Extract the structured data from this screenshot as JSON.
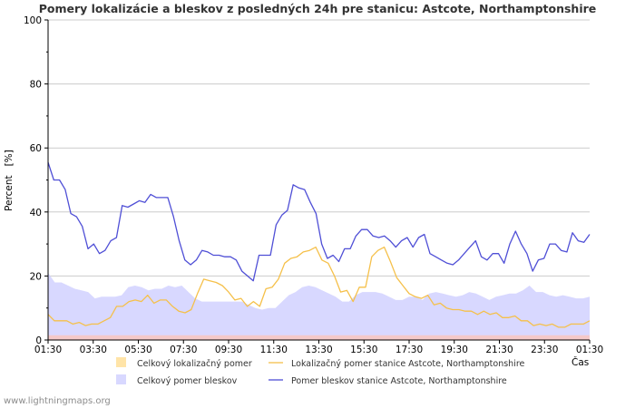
{
  "chart_data": {
    "type": "line",
    "title": "Pomery lokalizácie a bleskov z posledných 24h pre stanicu: Astcote, Northamptonshire",
    "xlabel": "Čas",
    "ylabel": "Percent   [%]",
    "ylim": [
      0,
      100
    ],
    "y_ticks": [
      "0",
      "20",
      "40",
      "60",
      "80",
      "100"
    ],
    "x_ticks": [
      "01:30",
      "03:30",
      "05:30",
      "07:30",
      "09:30",
      "11:30",
      "13:30",
      "15:30",
      "17:30",
      "19:30",
      "21:30",
      "23:30",
      "01:30"
    ],
    "colors": {
      "total_loc": "#ffe4a8",
      "total_light": "#d8d8ff",
      "station_loc": "#f5c04a",
      "station_light": "#4f4fd6",
      "grid": "#cccccc",
      "base": "#f4c9c9"
    },
    "legend": [
      {
        "key": "total_loc",
        "label": "Celkový lokalizačný pomer",
        "style": "area"
      },
      {
        "key": "station_loc",
        "label": "Lokalizačný pomer stanice Astcote, Northamptonshire",
        "style": "line"
      },
      {
        "key": "total_light",
        "label": "Celkový pomer bleskov",
        "style": "area"
      },
      {
        "key": "station_light",
        "label": "Pomer bleskov stanice Astcote, Northamptonshire",
        "style": "line"
      }
    ],
    "series": [
      {
        "name": "Celkový pomer bleskov",
        "key": "total_light",
        "kind": "area",
        "values": [
          21,
          18,
          18,
          17,
          16,
          15.5,
          15,
          13,
          13.5,
          13.5,
          13.5,
          14,
          16.5,
          17,
          16.5,
          15.5,
          16,
          16,
          17,
          16.5,
          17,
          15,
          13,
          12,
          12,
          12,
          12,
          12,
          12,
          12,
          11,
          10,
          9.5,
          10,
          10,
          12,
          14,
          15,
          16.5,
          17,
          16.5,
          15.5,
          14.5,
          13.5,
          12,
          12,
          14,
          15,
          15,
          15,
          14.5,
          13.5,
          12.5,
          12.5,
          13.5,
          13.5,
          12.5,
          14.5,
          15,
          14.5,
          14,
          13.5,
          14,
          15,
          14.5,
          13.5,
          12.5,
          13.5,
          14,
          14.5,
          14.5,
          15.5,
          17,
          15,
          15,
          14,
          13.5,
          14,
          13.5,
          13,
          13,
          13.5
        ]
      },
      {
        "name": "Celkový lokalizačný pomer",
        "key": "total_loc",
        "kind": "area",
        "values": [
          1.5,
          1.5,
          1.5,
          1.5,
          1.5,
          1.5,
          1.5,
          1.5,
          1.5,
          1.5,
          1.5,
          1.5,
          1.5,
          1.5,
          1.5,
          1.5,
          1.5,
          1.5,
          1.5,
          1.5,
          1.5,
          1.5,
          1.5,
          1.5,
          1.5,
          1.5,
          1.5,
          1.5,
          1.5,
          1.5,
          1.5,
          1.5,
          1.5,
          1.5,
          1.5,
          1.5,
          1.5,
          1.5,
          1.5,
          1.5,
          1.5,
          1.5,
          1.5,
          1.5,
          1.5,
          1.5,
          1.5,
          1.5,
          1.5,
          1.5,
          1.5,
          1.5,
          1.5,
          1.5,
          1.5,
          1.5,
          1.5,
          1.5,
          1.5,
          1.5,
          1.5,
          1.5,
          1.5,
          1.5,
          1.5,
          1.5,
          1.5,
          1.5,
          1.5,
          1.5,
          1.5,
          1.5,
          1.5,
          1.5,
          1.5,
          1.5,
          1.5,
          1.5,
          1.5,
          1.5,
          1.5,
          1.5
        ]
      },
      {
        "name": "Pomer bleskov stanice Astcote, Northamptonshire",
        "key": "station_light",
        "kind": "line",
        "values": [
          55.5,
          50,
          50,
          47,
          39.5,
          38.5,
          35.5,
          28.5,
          30,
          27,
          28,
          31,
          32,
          42,
          41.5,
          42.5,
          43.5,
          43,
          45.5,
          44.5,
          44.5,
          44.5,
          38.5,
          31,
          25,
          23.5,
          25,
          28,
          27.5,
          26.5,
          26.5,
          26,
          26,
          25,
          21.5,
          20,
          18.5,
          26.5,
          26.5,
          26.5,
          36,
          39,
          40.5,
          48.5,
          47.5,
          47,
          43,
          39.5,
          30,
          25.5,
          26.5,
          24.5,
          28.5,
          28.5,
          32.5,
          34.5,
          34.5,
          32.5,
          32,
          32.5,
          31,
          29,
          31,
          32,
          29,
          32,
          33,
          27,
          26,
          25,
          24,
          23.5,
          25,
          27,
          29,
          31,
          26,
          25,
          27,
          27,
          24,
          30,
          34,
          30,
          27,
          21.5,
          25,
          25.5,
          30,
          30,
          28,
          27.5,
          33.5,
          31,
          30.5,
          33
        ]
      },
      {
        "name": "Lokalizačný pomer stanice Astcote, Northamptonshire",
        "key": "station_loc",
        "kind": "line",
        "values": [
          8,
          6,
          6,
          6,
          5,
          5.5,
          4.5,
          5,
          5,
          6,
          7,
          10.5,
          10.5,
          12,
          12.5,
          12,
          14,
          11.5,
          12.5,
          12.5,
          10.5,
          9,
          8.5,
          9.5,
          14.5,
          19,
          18.5,
          18,
          17,
          15,
          12.5,
          13,
          10.5,
          12,
          10.5,
          16,
          16.5,
          19,
          24,
          25.5,
          26,
          27.5,
          28,
          29,
          25,
          24,
          20,
          15,
          15.5,
          12,
          16.5,
          16.5,
          26,
          28,
          29,
          24.5,
          19.5,
          17,
          14.5,
          13.5,
          13,
          14,
          11,
          11.5,
          10,
          9.5,
          9.5,
          9,
          9,
          8,
          9,
          8,
          8.5,
          7,
          7,
          7.5,
          6,
          6,
          4.5,
          5,
          4.5,
          5,
          4,
          4,
          5,
          5,
          5,
          6
        ]
      }
    ]
  },
  "footer": {
    "text": "www.lightningmaps.org"
  }
}
